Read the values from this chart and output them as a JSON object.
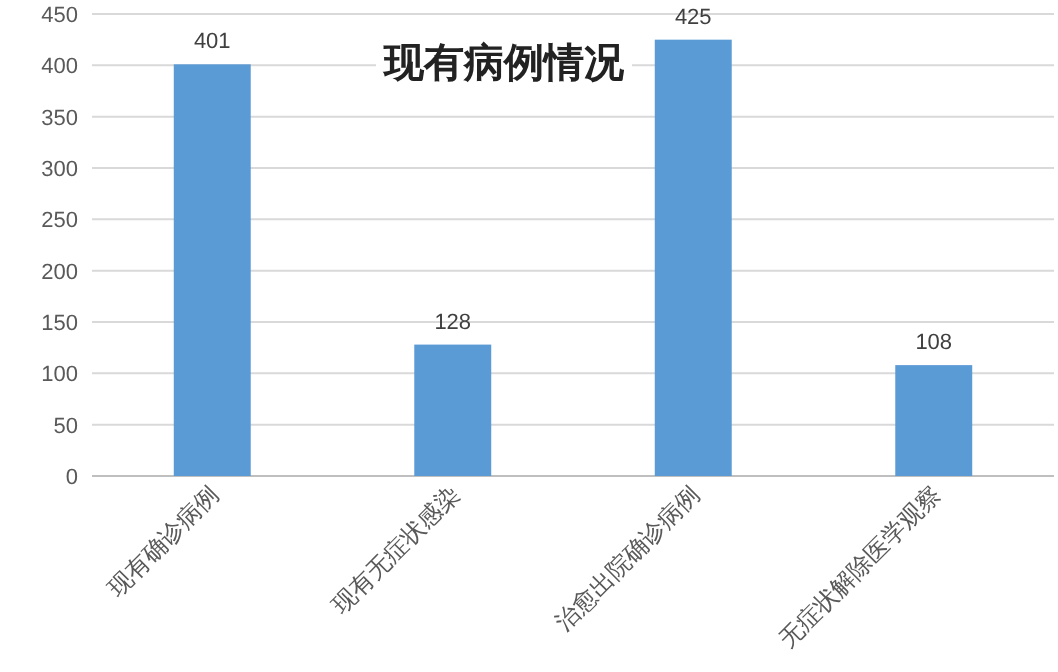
{
  "chart_data": {
    "type": "bar",
    "title": "现有病例情况",
    "categories": [
      "现有确诊病例",
      "现有无症状感染",
      "治愈出院确诊病例",
      "无症状解除医学观察"
    ],
    "values": [
      401,
      128,
      425,
      108
    ],
    "color": "#5b9bd5",
    "ylim": [
      0,
      450
    ],
    "yticks": [
      0,
      50,
      100,
      150,
      200,
      250,
      300,
      350,
      400,
      450
    ],
    "grid": "y",
    "data_labels": true
  }
}
